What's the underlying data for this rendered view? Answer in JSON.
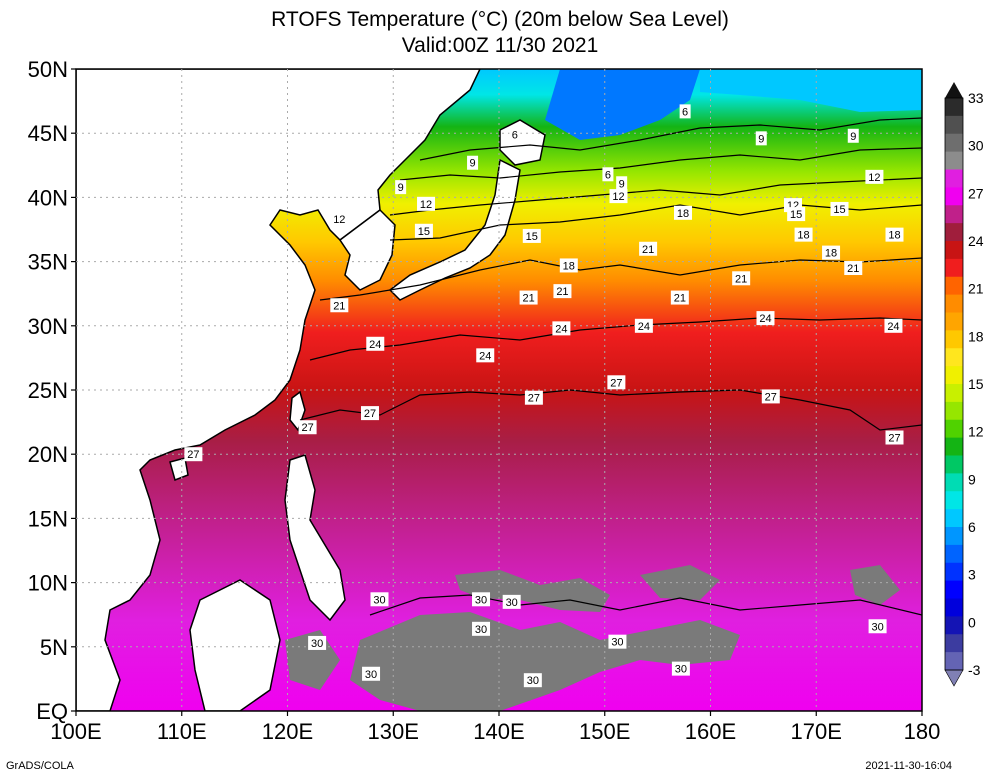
{
  "title": "RTOFS Temperature (°C) (20m below Sea Level)",
  "subtitle": "Valid:00Z 11/30 2021",
  "lat_labels": [
    "50N",
    "45N",
    "40N",
    "35N",
    "30N",
    "25N",
    "20N",
    "15N",
    "10N",
    "5N",
    "EQ"
  ],
  "lon_labels": [
    "100E",
    "110E",
    "120E",
    "130E",
    "140E",
    "150E",
    "160E",
    "170E",
    "180"
  ],
  "colorbar": {
    "labels": [
      "33",
      "30",
      "27",
      "24",
      "21",
      "18",
      "15",
      "12",
      "9",
      "6",
      "3",
      "0",
      "-3"
    ],
    "colors": [
      "#2b2b2b",
      "#505050",
      "#6e6e6e",
      "#8c8c8c",
      "#e01fe0",
      "#f000f0",
      "#c0208a",
      "#a01e3c",
      "#c81414",
      "#f01e1e",
      "#ff6400",
      "#ff8c00",
      "#ffa500",
      "#ffc800",
      "#ffe61e",
      "#f0f000",
      "#c8f000",
      "#96e600",
      "#50d200",
      "#14b414",
      "#00c864",
      "#00dcb4",
      "#00e6e6",
      "#00c8ff",
      "#0096ff",
      "#0064ff",
      "#0032ff",
      "#0000ff",
      "#0000dc",
      "#1414b4",
      "#3c3ca0",
      "#6464b4"
    ]
  },
  "contour_labels": [
    {
      "t": "6",
      "lon": 157.6,
      "lat": 46.7
    },
    {
      "t": "6",
      "lon": 141.5,
      "lat": 44.9
    },
    {
      "t": "9",
      "lon": 164.8,
      "lat": 44.6
    },
    {
      "t": "9",
      "lon": 173.5,
      "lat": 44.8
    },
    {
      "t": "9",
      "lon": 137.5,
      "lat": 42.7
    },
    {
      "t": "6",
      "lon": 150.3,
      "lat": 41.8
    },
    {
      "t": "9",
      "lon": 151.6,
      "lat": 41.1
    },
    {
      "t": "12",
      "lon": 175.5,
      "lat": 41.6
    },
    {
      "t": "9",
      "lon": 130.7,
      "lat": 40.8
    },
    {
      "t": "12",
      "lon": 151.3,
      "lat": 40.1
    },
    {
      "t": "12",
      "lon": 133.1,
      "lat": 39.5
    },
    {
      "t": "12",
      "lon": 167.8,
      "lat": 39.4
    },
    {
      "t": "15",
      "lon": 172.2,
      "lat": 39.1
    },
    {
      "t": "18",
      "lon": 157.4,
      "lat": 38.8
    },
    {
      "t": "15",
      "lon": 168.1,
      "lat": 38.7
    },
    {
      "t": "12",
      "lon": 124.9,
      "lat": 38.3
    },
    {
      "t": "15",
      "lon": 132.9,
      "lat": 37.4
    },
    {
      "t": "15",
      "lon": 143.1,
      "lat": 37.0
    },
    {
      "t": "18",
      "lon": 168.8,
      "lat": 37.1
    },
    {
      "t": "18",
      "lon": 177.4,
      "lat": 37.1
    },
    {
      "t": "21",
      "lon": 154.1,
      "lat": 36.0
    },
    {
      "t": "18",
      "lon": 171.4,
      "lat": 35.7
    },
    {
      "t": "18",
      "lon": 146.6,
      "lat": 34.7
    },
    {
      "t": "21",
      "lon": 173.5,
      "lat": 34.5
    },
    {
      "t": "21",
      "lon": 162.9,
      "lat": 33.7
    },
    {
      "t": "21",
      "lon": 146.0,
      "lat": 32.7
    },
    {
      "t": "21",
      "lon": 142.8,
      "lat": 32.2
    },
    {
      "t": "21",
      "lon": 157.1,
      "lat": 32.2
    },
    {
      "t": "21",
      "lon": 124.9,
      "lat": 31.6
    },
    {
      "t": "24",
      "lon": 165.2,
      "lat": 30.6
    },
    {
      "t": "24",
      "lon": 145.9,
      "lat": 29.8
    },
    {
      "t": "24",
      "lon": 153.7,
      "lat": 30.0
    },
    {
      "t": "24",
      "lon": 177.3,
      "lat": 30.0
    },
    {
      "t": "24",
      "lon": 128.3,
      "lat": 28.6
    },
    {
      "t": "24",
      "lon": 138.7,
      "lat": 27.7
    },
    {
      "t": "27",
      "lon": 151.1,
      "lat": 25.6
    },
    {
      "t": "27",
      "lon": 143.3,
      "lat": 24.4
    },
    {
      "t": "27",
      "lon": 165.7,
      "lat": 24.5
    },
    {
      "t": "27",
      "lon": 127.8,
      "lat": 23.2
    },
    {
      "t": "27",
      "lon": 121.9,
      "lat": 22.1
    },
    {
      "t": "27",
      "lon": 177.4,
      "lat": 21.3
    },
    {
      "t": "27",
      "lon": 111.1,
      "lat": 20.0
    },
    {
      "t": "30",
      "lon": 128.7,
      "lat": 8.7
    },
    {
      "t": "30",
      "lon": 138.3,
      "lat": 8.7
    },
    {
      "t": "30",
      "lon": 141.2,
      "lat": 8.5
    },
    {
      "t": "30",
      "lon": 138.3,
      "lat": 6.4
    },
    {
      "t": "30",
      "lon": 175.8,
      "lat": 6.6
    },
    {
      "t": "30",
      "lon": 122.8,
      "lat": 5.3
    },
    {
      "t": "30",
      "lon": 151.2,
      "lat": 5.4
    },
    {
      "t": "30",
      "lon": 157.2,
      "lat": 3.3
    },
    {
      "t": "30",
      "lon": 127.9,
      "lat": 2.9
    },
    {
      "t": "30",
      "lon": 143.2,
      "lat": 2.4
    }
  ],
  "footer_left": "GrADS/COLA",
  "footer_right": "2021-11-30-16:04"
}
